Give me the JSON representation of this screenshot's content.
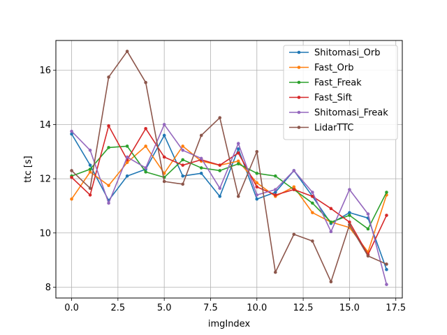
{
  "chart_data": {
    "type": "line",
    "xlabel": "imgIndex",
    "ylabel": "ttc [s]",
    "xlim": [
      -0.85,
      17.85
    ],
    "ylim": [
      7.6,
      17.1
    ],
    "xticks": [
      0.0,
      2.5,
      5.0,
      7.5,
      10.0,
      12.5,
      15.0,
      17.5
    ],
    "xtick_labels": [
      "0.0",
      "2.5",
      "5.0",
      "7.5",
      "10.0",
      "12.5",
      "15.0",
      "17.5"
    ],
    "yticks": [
      8,
      10,
      12,
      14,
      16
    ],
    "ytick_labels": [
      "8",
      "10",
      "12",
      "14",
      "16"
    ],
    "grid": true,
    "legend_position": "top-right",
    "x": [
      0,
      1,
      2,
      3,
      4,
      5,
      6,
      7,
      8,
      9,
      10,
      11,
      12,
      13,
      14,
      15,
      16,
      17
    ],
    "series": [
      {
        "name": "Shitomasi_Orb",
        "color": "#1f77b4",
        "values": [
          13.65,
          12.5,
          11.2,
          12.1,
          12.35,
          13.6,
          12.1,
          12.2,
          11.35,
          13.1,
          11.25,
          11.5,
          12.3,
          11.35,
          10.35,
          10.75,
          10.55,
          8.65
        ]
      },
      {
        "name": "Fast_Orb",
        "color": "#ff7f0e",
        "values": [
          11.25,
          12.25,
          11.75,
          12.6,
          13.2,
          12.2,
          13.2,
          12.65,
          12.5,
          12.65,
          11.85,
          11.35,
          11.7,
          10.75,
          10.4,
          10.2,
          9.3,
          11.4
        ]
      },
      {
        "name": "Fast_Freak",
        "color": "#2ca02c",
        "values": [
          12.1,
          12.35,
          13.15,
          13.2,
          12.25,
          12.05,
          12.7,
          12.4,
          12.3,
          12.55,
          12.2,
          12.1,
          11.6,
          11.1,
          10.4,
          10.65,
          10.15,
          11.5
        ]
      },
      {
        "name": "Fast_Sift",
        "color": "#d62728",
        "values": [
          12.05,
          11.4,
          13.95,
          12.7,
          13.85,
          12.8,
          12.5,
          12.7,
          12.5,
          12.95,
          11.7,
          11.4,
          11.6,
          11.35,
          10.9,
          10.4,
          9.2,
          10.65
        ]
      },
      {
        "name": "Shitomasi_Freak",
        "color": "#9467bd",
        "values": [
          13.75,
          13.05,
          11.1,
          12.8,
          12.4,
          14.0,
          13.05,
          12.75,
          11.65,
          13.3,
          11.4,
          11.6,
          12.3,
          11.5,
          10.05,
          11.6,
          10.7,
          8.1
        ]
      },
      {
        "name": "LidarTTC",
        "color": "#8c564b",
        "values": [
          12.3,
          11.65,
          15.75,
          16.7,
          15.55,
          11.9,
          11.8,
          13.6,
          14.25,
          11.35,
          13.0,
          8.55,
          9.95,
          9.7,
          8.2,
          10.3,
          9.15,
          8.85
        ]
      }
    ]
  }
}
